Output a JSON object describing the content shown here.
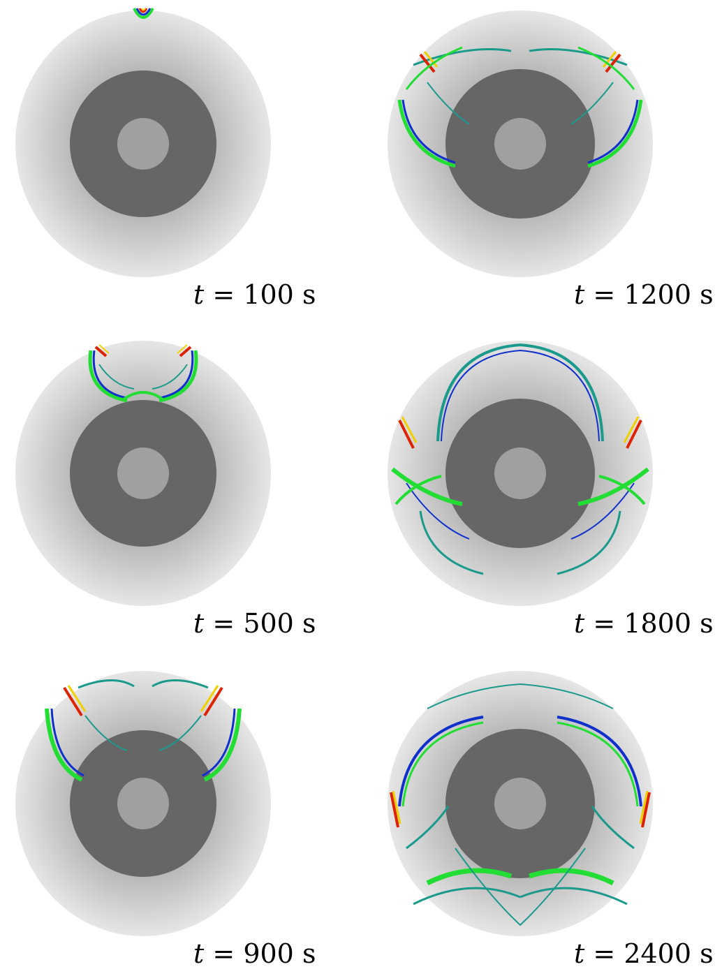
{
  "panels": [
    {
      "id": "p1",
      "var": "t",
      "eq": "=",
      "value": "100",
      "unit": "s"
    },
    {
      "id": "p2",
      "var": "t",
      "eq": "=",
      "value": "1200",
      "unit": "s"
    },
    {
      "id": "p3",
      "var": "t",
      "eq": "=",
      "value": "500",
      "unit": "s"
    },
    {
      "id": "p4",
      "var": "t",
      "eq": "=",
      "value": "1800",
      "unit": "s"
    },
    {
      "id": "p5",
      "var": "t",
      "eq": "=",
      "value": "900",
      "unit": "s"
    },
    {
      "id": "p6",
      "var": "t",
      "eq": "=",
      "value": "2400",
      "unit": "s"
    }
  ],
  "colors": {
    "outer_shell": "#e4e4e4",
    "mid_shell": "#c2c2c2",
    "mantle": "#666666",
    "core": "#a0a0a0",
    "wave_green": "#22dd33",
    "wave_blue": "#1030cc",
    "wave_teal": "#1a9a8a",
    "wave_red": "#dd2200",
    "wave_yellow": "#f0d000"
  }
}
